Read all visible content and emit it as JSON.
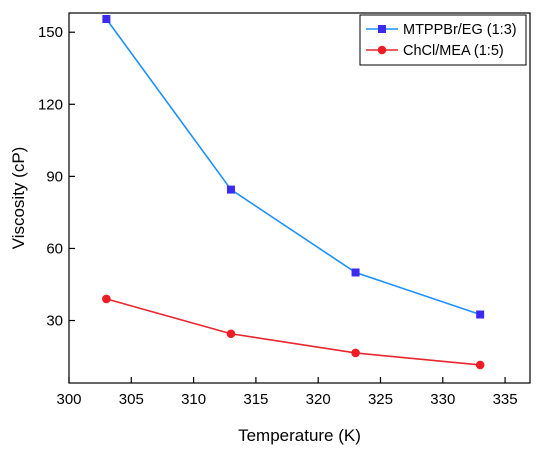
{
  "chart_data": {
    "type": "line",
    "xlabel": "Temperature (K)",
    "ylabel": "Viscosity (cP)",
    "xlim": [
      300,
      337
    ],
    "ylim": [
      4,
      158
    ],
    "xticks": [
      300,
      305,
      310,
      315,
      320,
      325,
      330,
      335
    ],
    "yticks": [
      30,
      60,
      90,
      120,
      150
    ],
    "grid": false,
    "legend_position": "top-right",
    "x": [
      303,
      313,
      323,
      333
    ],
    "series": [
      {
        "name": "MTPPBr/EG (1:3)",
        "values": [
          155.5,
          84.5,
          50,
          32.5
        ],
        "color": "#1e90ff",
        "marker": "square",
        "marker_color": "#3a2bef"
      },
      {
        "name": "ChCl/MEA (1:5)",
        "values": [
          39,
          24.5,
          16.5,
          11.5
        ],
        "color": "#e8262d",
        "marker": "circle",
        "marker_color": "#ee1c24"
      }
    ]
  }
}
